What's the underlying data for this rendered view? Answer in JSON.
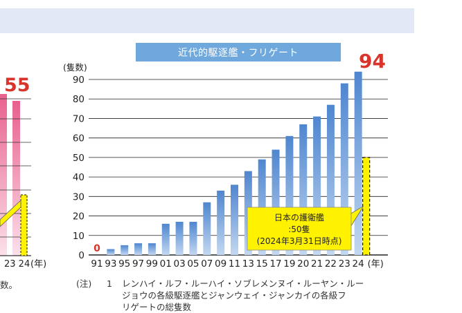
{
  "chart_data": {
    "type": "bar",
    "title": "近代的駆逐艦・フリゲート",
    "ylabel": "(隻数)",
    "xlabel": "(年)",
    "ylim": [
      0,
      90
    ],
    "yticks": [
      0,
      10,
      20,
      30,
      40,
      50,
      60,
      70,
      80,
      90
    ],
    "categories": [
      "91",
      "93",
      "95",
      "97",
      "99",
      "01",
      "03",
      "05",
      "07",
      "09",
      "11",
      "13",
      "15",
      "17",
      "19",
      "20",
      "21",
      "22",
      "23",
      "24"
    ],
    "values": [
      0,
      3,
      5,
      6,
      6,
      16,
      17,
      17,
      27,
      33,
      36,
      43,
      49,
      54,
      61,
      67,
      71,
      77,
      88,
      94
    ],
    "first_value_label": "0",
    "last_value_label": "94",
    "japan_comparison": {
      "value": 50,
      "callout_lines": [
        "日本の護衛艦",
        ":50隻",
        "(2024年3月31日時点)"
      ]
    },
    "colors": {
      "bar_top": "#4f86cf",
      "bar_bottom": "#c3d8f2",
      "japan_bar": "#fff200",
      "label_red": "#d8342b"
    }
  },
  "left_panel": {
    "value_label": "55",
    "x_tail": "23 24",
    "x_unit": "(年)",
    "footer_fragment": "数。"
  },
  "notes": {
    "tag": "(注)",
    "number": "1",
    "lines": [
      "レンハイ・ルフ・ルーハイ・ソブレメンヌイ・ルーヤン・ルー",
      "ジョウの各級駆逐艦とジャンウェイ・ジャンカイの各級フ",
      "リゲートの総隻数"
    ]
  }
}
